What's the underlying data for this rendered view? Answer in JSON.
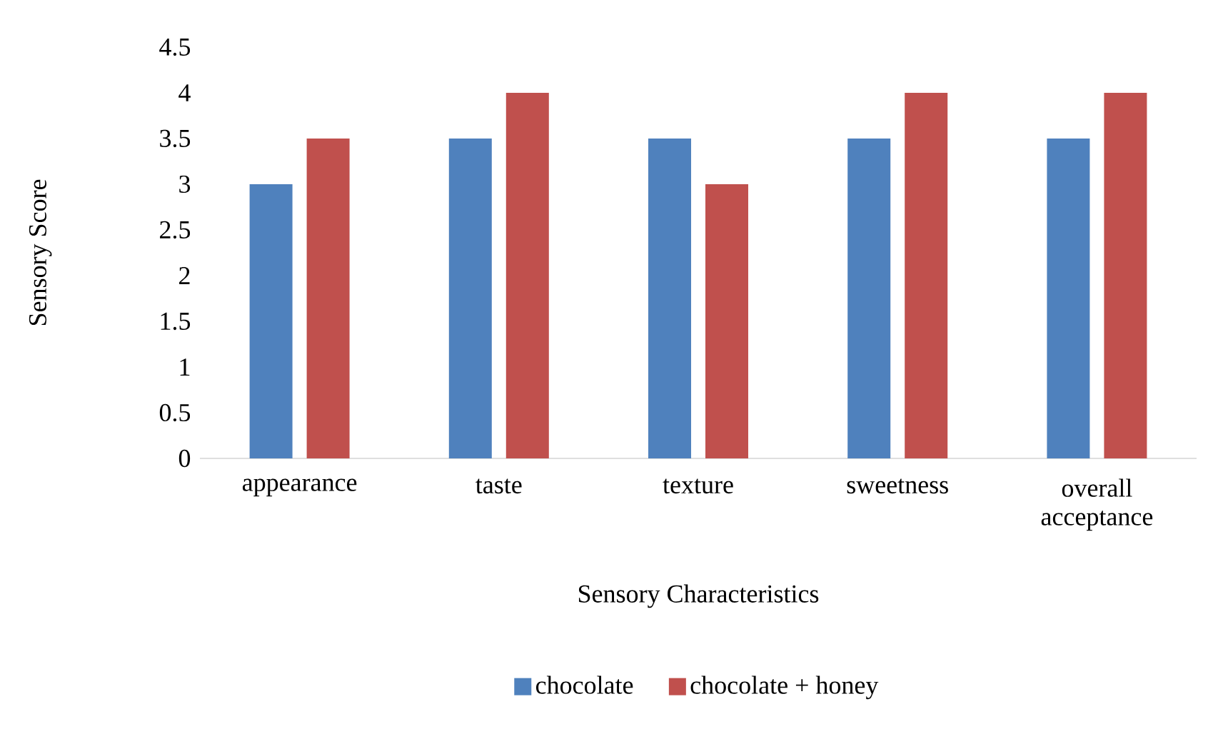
{
  "chart_data": {
    "type": "bar",
    "xlabel": "Sensory Characteristics",
    "ylabel": "Sensory Score",
    "categories": [
      "appearance",
      "taste",
      "texture",
      "sweetness",
      "overall acceptance"
    ],
    "series": [
      {
        "name": "chocolate",
        "color": "#4f81bd",
        "values": [
          3,
          3.5,
          3.5,
          3.5,
          3.5
        ]
      },
      {
        "name": "chocolate + honey",
        "color": "#c0504d",
        "values": [
          3.5,
          4,
          3,
          4,
          4
        ]
      }
    ],
    "ylim": [
      0,
      4.5
    ],
    "yticks": [
      0,
      0.5,
      1,
      1.5,
      2,
      2.5,
      3,
      3.5,
      4,
      4.5
    ],
    "legend": "bottom"
  }
}
